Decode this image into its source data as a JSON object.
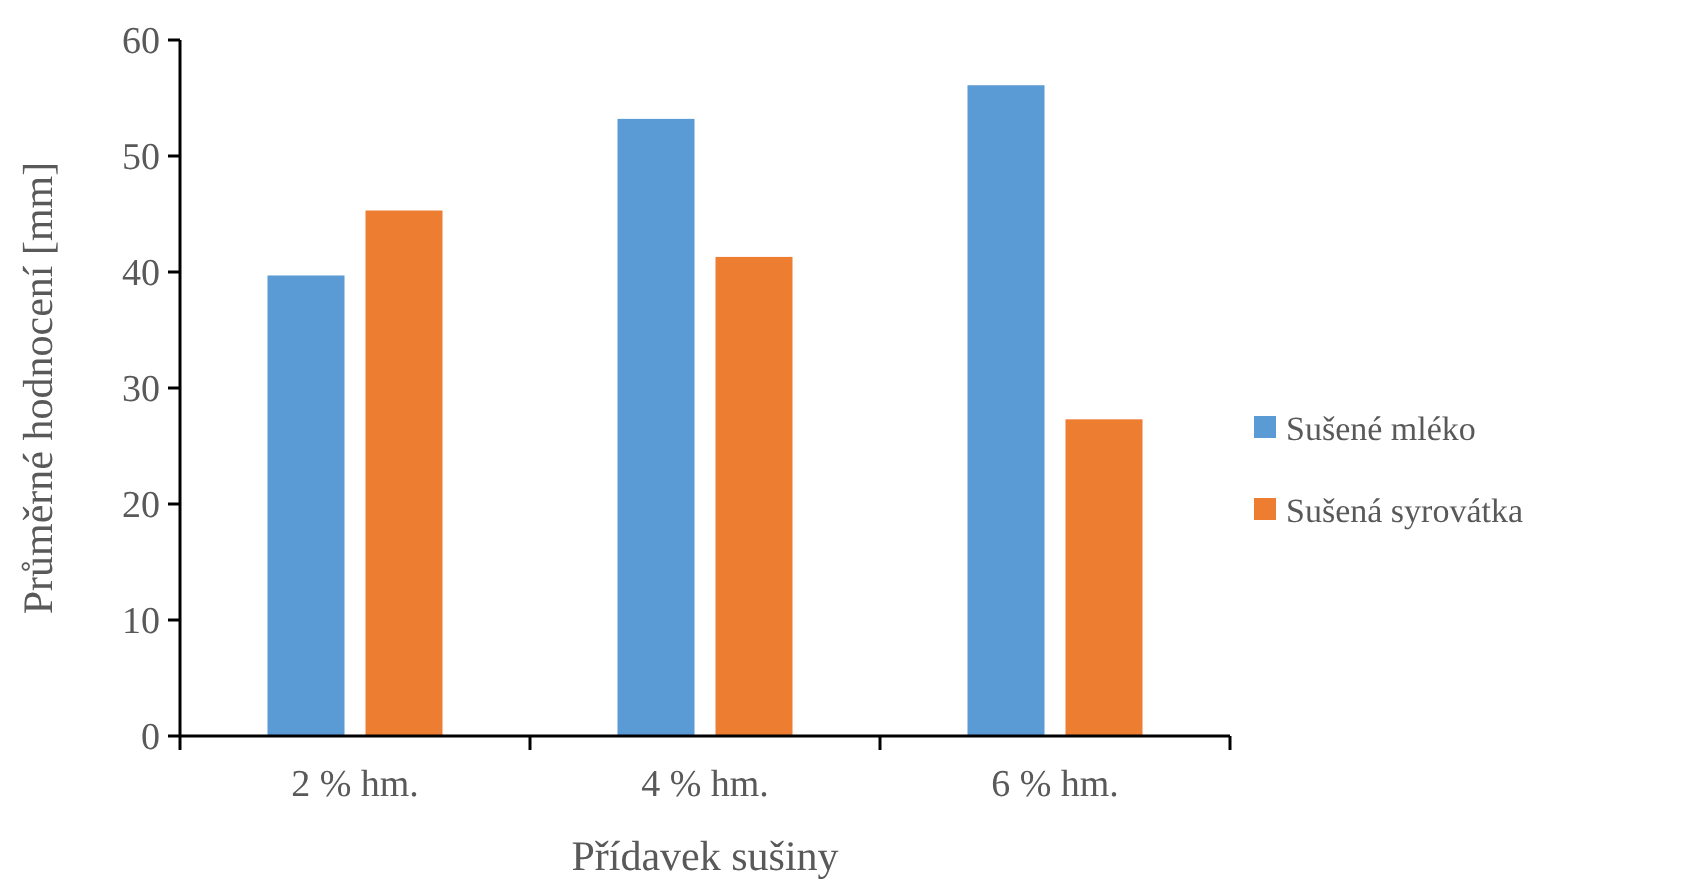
{
  "chart_data": {
    "type": "bar",
    "xlabel": "Přídavek sušiny",
    "ylabel": "Průměrné hodnocení [mm]",
    "categories": [
      "2 % hm.",
      "4 % hm.",
      "6 % hm."
    ],
    "series": [
      {
        "name": "Sušené mléko",
        "color": "#5b9bd5",
        "values": [
          39.7,
          53.2,
          56.1
        ]
      },
      {
        "name": "Sušená syrovátka",
        "color": "#ed7d31",
        "values": [
          45.3,
          41.3,
          27.3
        ]
      }
    ],
    "ylim": [
      0,
      60
    ],
    "yticks": [
      0,
      10,
      20,
      30,
      40,
      50,
      60
    ],
    "grid": false,
    "legend": "right"
  }
}
